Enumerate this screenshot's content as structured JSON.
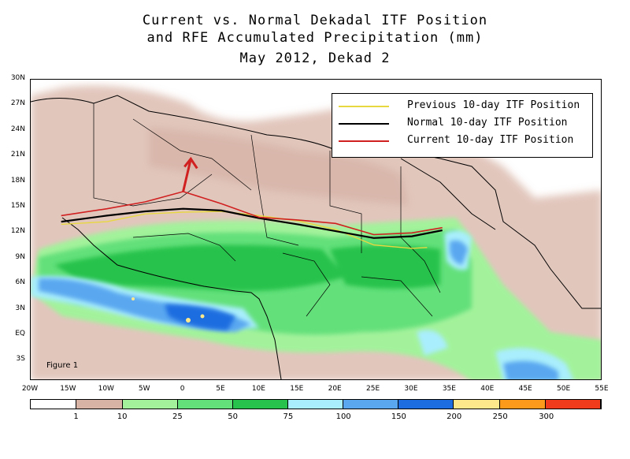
{
  "title": {
    "line1": "Current vs. Normal Dekadal ITF Position",
    "line2": "and RFE Accumulated Precipitation (mm)",
    "line3": "May 2012, Dekad 2"
  },
  "map": {
    "lat_labels": [
      "30N",
      "27N",
      "24N",
      "21N",
      "18N",
      "15N",
      "12N",
      "9N",
      "6N",
      "3N",
      "EQ",
      "3S"
    ],
    "lon_labels": [
      "20W",
      "15W",
      "10W",
      "5W",
      "0",
      "5E",
      "10E",
      "15E",
      "20E",
      "25E",
      "30E",
      "35E",
      "40E",
      "45E",
      "50E",
      "55E"
    ],
    "figure_label": "Figure 1"
  },
  "legend": {
    "items": [
      {
        "label": "Previous 10-day ITF Position",
        "color": "#e8d840"
      },
      {
        "label": "Normal 10-day ITF Position",
        "color": "#000000"
      },
      {
        "label": "Current 10-day ITF Position",
        "color": "#d02020"
      }
    ]
  },
  "colorbar": {
    "colors": [
      "#ffffff",
      "#d7b3a6",
      "#a3f29b",
      "#64e07a",
      "#27c24c",
      "#a9eefc",
      "#5aa7f0",
      "#1e6de0",
      "#fee88c",
      "#fc9a1c",
      "#f03c1c"
    ],
    "labels": [
      "1",
      "10",
      "25",
      "50",
      "75",
      "100",
      "150",
      "200",
      "250",
      "300"
    ]
  },
  "chart_data": {
    "type": "map",
    "title": "Current vs. Normal Dekadal ITF Position and RFE Accumulated Precipitation (mm)",
    "subtitle": "May 2012, Dekad 2",
    "lon_range": [
      -20,
      55
    ],
    "lat_range": [
      -5,
      30
    ],
    "series": [
      {
        "name": "Previous 10-day ITF Position",
        "color": "#e8d840",
        "points": [
          [
            -16,
            13.2
          ],
          [
            -10,
            13.5
          ],
          [
            -5,
            14.4
          ],
          [
            0,
            14.6
          ],
          [
            5,
            14.7
          ],
          [
            10,
            14.2
          ],
          [
            15,
            13.6
          ],
          [
            20,
            12.6
          ],
          [
            25,
            10.8
          ],
          [
            30,
            10.4
          ],
          [
            32,
            10.5
          ]
        ]
      },
      {
        "name": "Normal 10-day ITF Position",
        "color": "#000000",
        "points": [
          [
            -16,
            13.5
          ],
          [
            -10,
            14.2
          ],
          [
            -5,
            14.7
          ],
          [
            0,
            15.0
          ],
          [
            5,
            14.8
          ],
          [
            10,
            13.9
          ],
          [
            15,
            13.2
          ],
          [
            20,
            12.4
          ],
          [
            25,
            11.6
          ],
          [
            30,
            11.8
          ],
          [
            34,
            12.5
          ]
        ]
      },
      {
        "name": "Current 10-day ITF Position",
        "color": "#d02020",
        "points": [
          [
            -16,
            14.2
          ],
          [
            -10,
            15.0
          ],
          [
            -5,
            15.8
          ],
          [
            0,
            17.0
          ],
          [
            5,
            15.6
          ],
          [
            10,
            14.0
          ],
          [
            15,
            13.7
          ],
          [
            20,
            13.3
          ],
          [
            25,
            12.0
          ],
          [
            30,
            12.2
          ],
          [
            34,
            12.8
          ]
        ]
      }
    ],
    "annotations": [
      {
        "text": "arrow",
        "from": [
          0,
          17.0
        ],
        "to": [
          1,
          20.8
        ],
        "color": "#d02020"
      }
    ],
    "colorbar": {
      "unit": "mm",
      "bounds": [
        1,
        10,
        25,
        50,
        75,
        100,
        150,
        200,
        250,
        300
      ]
    }
  }
}
